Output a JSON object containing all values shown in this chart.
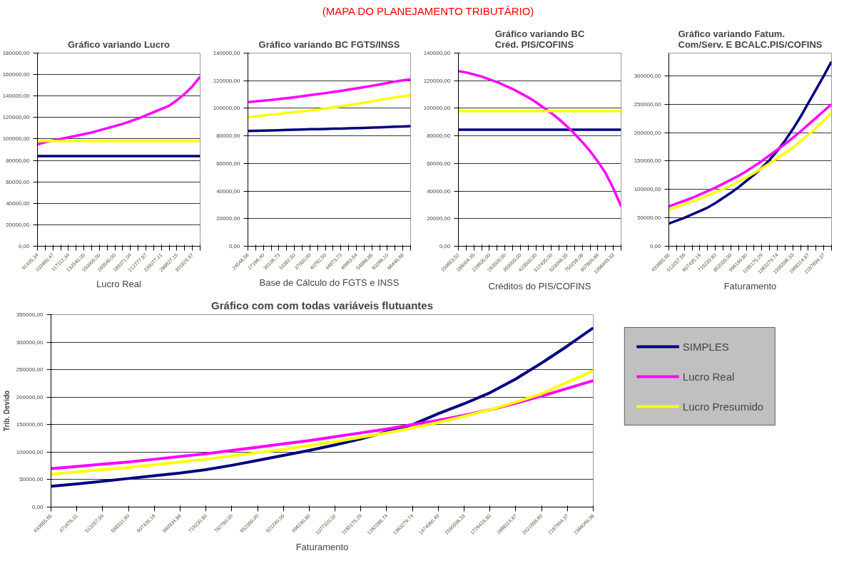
{
  "chart_data": [
    {
      "type": "line",
      "title": "Gráfico variando Lucro",
      "xlabel": "Lucro Real",
      "annotations": [
        "(MAPA DO PLANEJAMENTO TRIBUTÁRIO)"
      ],
      "categories": [
        "91435,34",
        null,
        "103460,47",
        null,
        "117112,34",
        null,
        "132540,00",
        null,
        "150000,00",
        null,
        "169540,00",
        null,
        "189371,04",
        null,
        "212777,87",
        null,
        "239077,21",
        null,
        "268627,15",
        null,
        "301829,47",
        null
      ],
      "series": [
        {
          "color": "#000080",
          "values": [
            84000,
            84000,
            84000,
            84000,
            84000,
            84000,
            84000,
            84000,
            84000,
            84000,
            84000,
            84000,
            84000,
            84000,
            84000,
            84000,
            84000,
            84000,
            84000,
            84000,
            84000,
            84000
          ]
        },
        {
          "color": "#ff00ff",
          "values": [
            95000,
            97000,
            98500,
            100000,
            101500,
            103000,
            104500,
            106000,
            108000,
            110000,
            112000,
            114000,
            116500,
            119000,
            122000,
            125000,
            128000,
            131000,
            136000,
            142000,
            149000,
            158000
          ]
        },
        {
          "color": "#ffff00",
          "values": [
            98000,
            98000,
            98000,
            98000,
            98000,
            98000,
            98000,
            98000,
            98000,
            98000,
            98000,
            98000,
            98000,
            98000,
            98000,
            98000,
            98000,
            98000,
            98000,
            98000,
            98000,
            98000
          ]
        }
      ],
      "ylim": [
        0,
        180000
      ],
      "yticks": [
        {
          "value": 0,
          "label": "0,00"
        },
        {
          "value": 20000,
          "label": "20000,00"
        },
        {
          "value": 40000,
          "label": "40000,00"
        },
        {
          "value": 60000,
          "label": "60000,00"
        },
        {
          "value": 80000,
          "label": "80000,00"
        },
        {
          "value": 100000,
          "label": "100000,00"
        },
        {
          "value": 120000,
          "label": "120000,00"
        },
        {
          "value": 140000,
          "label": "140000,00"
        },
        {
          "value": 160000,
          "label": "160000,00"
        },
        {
          "value": 180000,
          "label": "180000,00"
        }
      ],
      "grid": "y"
    },
    {
      "type": "line",
      "title": "Gráfico variando BC FGTS/INSS",
      "xlabel": "Base de Cálculo do FGTS e INSS",
      "categories": [
        "24546,56",
        null,
        "27166,40",
        null,
        "30106,73",
        null,
        "33382,50",
        null,
        "37000,00",
        null,
        "40762,50",
        null,
        "44973,73",
        null,
        "49663,54",
        null,
        "54868,85",
        null,
        "60268,10",
        null,
        "66446,68",
        null
      ],
      "series": [
        {
          "color": "#000080",
          "values": [
            83500,
            83700,
            83800,
            84000,
            84100,
            84300,
            84500,
            84600,
            84800,
            84900,
            85000,
            85200,
            85300,
            85500,
            85600,
            85800,
            86000,
            86200,
            86400,
            86600,
            86800,
            87000
          ]
        },
        {
          "color": "#ff00ff",
          "values": [
            104500,
            105000,
            105500,
            106000,
            106700,
            107300,
            108000,
            108700,
            109500,
            110300,
            111000,
            111800,
            112600,
            113500,
            114400,
            115300,
            116300,
            117300,
            118300,
            119400,
            120200,
            121000
          ]
        },
        {
          "color": "#ffff00",
          "values": [
            93500,
            94200,
            94800,
            95400,
            96000,
            96600,
            97200,
            97800,
            98400,
            99000,
            99800,
            100600,
            101400,
            102300,
            103200,
            104100,
            105000,
            106000,
            107000,
            108000,
            108800,
            109500
          ]
        }
      ],
      "ylim": [
        0,
        140000
      ],
      "yticks": [
        {
          "value": 0,
          "label": "0,00"
        },
        {
          "value": 20000,
          "label": "20000,00"
        },
        {
          "value": 40000,
          "label": "40000,00"
        },
        {
          "value": 60000,
          "label": "60000,00"
        },
        {
          "value": 80000,
          "label": "80000,00"
        },
        {
          "value": 100000,
          "label": "100000,00"
        },
        {
          "value": 120000,
          "label": "120000,00"
        },
        {
          "value": 140000,
          "label": "140000,00"
        }
      ],
      "grid": "y"
    },
    {
      "type": "line",
      "title": "Gráfico variando BC Créd. PIS/COFINS",
      "xlabel": "Créditos do PIS/COFINS",
      "categories": [
        "150663,52",
        null,
        "186004,35",
        null,
        "229635,00",
        null,
        "283500,00",
        null,
        "350000,00",
        null,
        "423500,00",
        null,
        "512435,00",
        null,
        "620046,35",
        null,
        "750256,08",
        null,
        "907809,86",
        null,
        "1098449,93",
        null
      ],
      "series": [
        {
          "color": "#000080",
          "values": [
            84500,
            84500,
            84500,
            84500,
            84500,
            84500,
            84500,
            84500,
            84500,
            84500,
            84500,
            84500,
            84500,
            84500,
            84500,
            84500,
            84500,
            84500,
            84500,
            84500,
            84500,
            84500
          ]
        },
        {
          "color": "#ff00ff",
          "values": [
            127000,
            126000,
            124500,
            123000,
            121000,
            119000,
            116500,
            114000,
            111000,
            108000,
            104500,
            100500,
            96500,
            92000,
            87000,
            81500,
            75500,
            69000,
            61500,
            53000,
            42000,
            29000
          ]
        },
        {
          "color": "#ffff00",
          "values": [
            98000,
            98000,
            98000,
            98000,
            98000,
            98000,
            98000,
            98000,
            98000,
            98000,
            98000,
            98000,
            98000,
            98000,
            98000,
            98000,
            98000,
            98000,
            98000,
            98000,
            98000,
            98000
          ]
        }
      ],
      "ylim": [
        0,
        140000
      ],
      "yticks": [
        {
          "value": 0,
          "label": "0,00"
        },
        {
          "value": 20000,
          "label": "20000,00"
        },
        {
          "value": 40000,
          "label": "40000,00"
        },
        {
          "value": 60000,
          "label": "60000,00"
        },
        {
          "value": 80000,
          "label": "80000,00"
        },
        {
          "value": 100000,
          "label": "100000,00"
        },
        {
          "value": 120000,
          "label": "120000,00"
        },
        {
          "value": 140000,
          "label": "140000,00"
        }
      ],
      "grid": "y"
    },
    {
      "type": "line",
      "title": "Gráfico variando Fatum. Com/Serv. E BCALC.PIS/COFINS",
      "xlabel": "Faturamento",
      "categories": [
        "433665,65",
        null,
        "513257,56",
        null,
        "607435,16",
        null,
        "719230,80",
        null,
        "852000,00",
        null,
        "996190,80",
        null,
        "1165175,29",
        null,
        "1363279,74",
        null,
        "1595596,33",
        null,
        "1868114,87",
        null,
        "2187694,37",
        null
      ],
      "series": [
        {
          "color": "#000080",
          "values": [
            40000,
            45000,
            50000,
            56000,
            62000,
            68000,
            76000,
            85000,
            94000,
            104000,
            115000,
            126000,
            138000,
            152000,
            168000,
            186000,
            206000,
            228000,
            252000,
            276000,
            300000,
            325000
          ]
        },
        {
          "color": "#ff00ff",
          "values": [
            70000,
            75000,
            80000,
            85000,
            91000,
            97000,
            103000,
            110000,
            117000,
            124000,
            132000,
            141000,
            150000,
            160000,
            170000,
            180000,
            191000,
            202000,
            214000,
            226000,
            238000,
            250000
          ]
        },
        {
          "color": "#ffff00",
          "values": [
            65000,
            69000,
            74000,
            79000,
            84000,
            89000,
            95000,
            101000,
            107000,
            114000,
            121000,
            129000,
            137000,
            146000,
            155000,
            164000,
            174000,
            185000,
            196000,
            208000,
            221000,
            235000
          ]
        }
      ],
      "ylim": [
        0,
        340000
      ],
      "yticks": [
        {
          "value": 0,
          "label": "0,00"
        },
        {
          "value": 50000,
          "label": "50000,00"
        },
        {
          "value": 100000,
          "label": "100000,00"
        },
        {
          "value": 150000,
          "label": "150000,00"
        },
        {
          "value": 200000,
          "label": "200000,00"
        },
        {
          "value": 250000,
          "label": "250000,00"
        },
        {
          "value": 300000,
          "label": "300000,00"
        }
      ],
      "grid": "y"
    },
    {
      "type": "line",
      "title": "Gráfico com com todas variáveis flutuantes",
      "xlabel": "Faturamento",
      "ylabel": "Trib. Devido",
      "categories": [
        "433665,65",
        "471676,01",
        "513257,59",
        "558331,80",
        "607435,16",
        "660934,88",
        "719230,80",
        "782780,00",
        "852000,00",
        "921240,00",
        "996190,80",
        "1077320,02",
        "1165175,29",
        "1262288,74",
        "1363279,74",
        "1474060,49",
        "1595596,33",
        "1726416,60",
        "1868114,87",
        "2021658,60",
        "2187694,37",
        "2366049,08"
      ],
      "series": [
        {
          "name": "SIMPLES",
          "color": "#000080",
          "values": [
            38000,
            42000,
            47000,
            52000,
            57000,
            62000,
            68000,
            76000,
            85000,
            94000,
            103000,
            113000,
            124000,
            137000,
            150000,
            170000,
            188000,
            208000,
            233000,
            262000,
            293000,
            326000
          ]
        },
        {
          "name": "Lucro Real",
          "color": "#ff00ff",
          "values": [
            70000,
            74000,
            78000,
            82000,
            87000,
            92000,
            97000,
            103000,
            109000,
            115000,
            121000,
            128000,
            135000,
            142000,
            150000,
            158000,
            167000,
            177000,
            189000,
            202000,
            216000,
            230000
          ]
        },
        {
          "name": "Lucro Presumido",
          "color": "#ffff00",
          "values": [
            60000,
            64000,
            68000,
            72000,
            77000,
            82000,
            87000,
            93000,
            99000,
            105000,
            112000,
            119000,
            127000,
            135000,
            144000,
            154000,
            165000,
            177000,
            191000,
            206000,
            227000,
            248000
          ]
        }
      ],
      "ylim": [
        0,
        350000
      ],
      "yticks": [
        {
          "value": 0,
          "label": "0,00"
        },
        {
          "value": 50000,
          "label": "50000,00"
        },
        {
          "value": 100000,
          "label": "100000,00"
        },
        {
          "value": 150000,
          "label": "150000,00"
        },
        {
          "value": 200000,
          "label": "200000,00"
        },
        {
          "value": 250000,
          "label": "250000,00"
        },
        {
          "value": 300000,
          "label": "300000,00"
        },
        {
          "value": 350000,
          "label": "350000,00"
        }
      ],
      "grid": "y",
      "legend": "right"
    }
  ]
}
